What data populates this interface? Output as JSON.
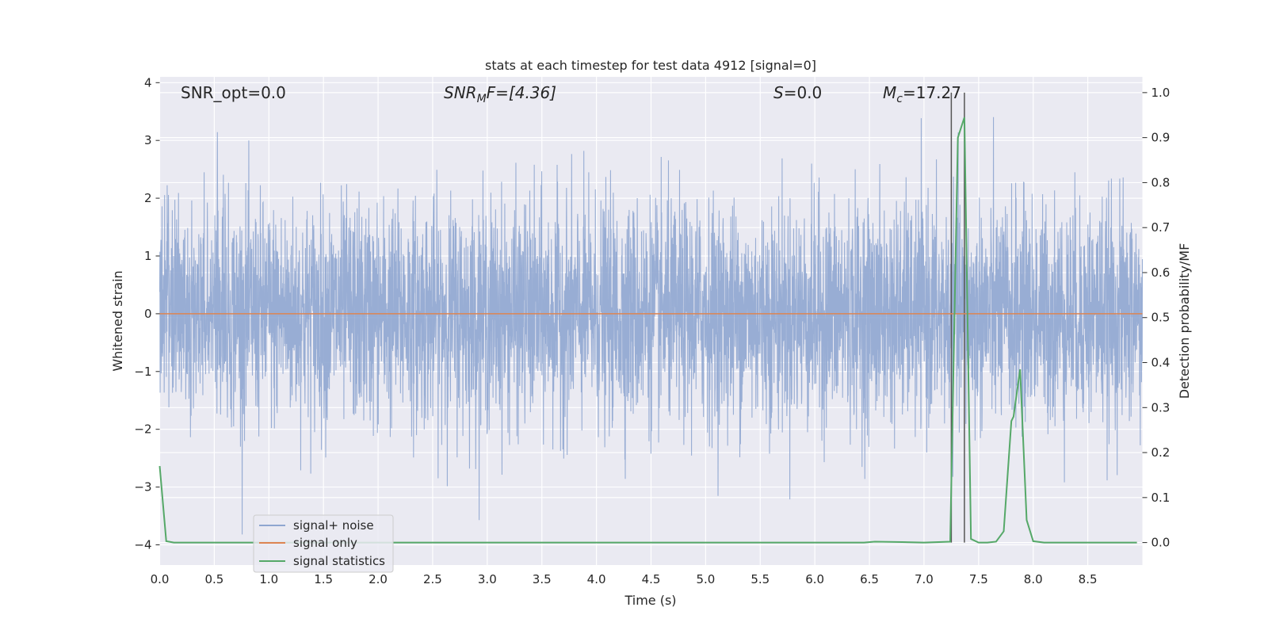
{
  "chart_data": {
    "type": "line",
    "title": "stats at each timestep for test data 4912 [signal=0]",
    "xlabel": "Time (s)",
    "ylabel": "Whitened strain",
    "ylabel_right": "Detection probability/MF",
    "xlim": [
      0.0,
      9.0
    ],
    "ylim": [
      -4.35,
      4.1
    ],
    "ylim_right": [
      -0.05,
      1.035
    ],
    "x_ticks": [
      "0.0",
      "0.5",
      "1.0",
      "1.5",
      "2.0",
      "2.5",
      "3.0",
      "3.5",
      "4.0",
      "4.5",
      "5.0",
      "5.5",
      "6.0",
      "6.5",
      "7.0",
      "7.5",
      "8.0",
      "8.5"
    ],
    "y_ticks": [
      "4",
      "3",
      "2",
      "1",
      "0",
      "−1",
      "−2",
      "−3",
      "−4"
    ],
    "y_ticks_right": [
      "1.0",
      "0.9",
      "0.8",
      "0.7",
      "0.6",
      "0.5",
      "0.4",
      "0.3",
      "0.2",
      "0.1",
      "0.0"
    ],
    "grid": true,
    "legend_position": "lower-left",
    "annotations": {
      "snr_opt": "SNR_opt=0.0",
      "snr_mf_base": "SNR",
      "snr_mf_sub": "M",
      "snr_mf_rest": "F=[4.36]",
      "s_main": "S",
      "s_rest": "=0.0",
      "mc_main": "M",
      "mc_sub": "c",
      "mc_rest": "=17.27"
    },
    "vertical_lines_x": [
      7.25,
      7.37
    ],
    "series": [
      {
        "name": "signal+ noise",
        "color": "#8fa6d0",
        "kind": "noise",
        "x_range": [
          0.0,
          9.0
        ],
        "envelope": [
          -4.0,
          3.55
        ],
        "note_values": "dense whitened strain noise, approx. ±1.5 core"
      },
      {
        "name": "signal only",
        "color": "#dd8452",
        "kind": "line",
        "x": [
          0.0,
          9.0
        ],
        "y": [
          0.0,
          0.0
        ]
      },
      {
        "name": "signal statistics",
        "color": "#55a868",
        "kind": "line",
        "axis": "right",
        "x": [
          0.0,
          0.06,
          0.13,
          0.5,
          1.0,
          2.0,
          3.0,
          4.0,
          5.0,
          6.0,
          6.45,
          6.55,
          6.8,
          7.0,
          7.24,
          7.31,
          7.37,
          7.43,
          7.5,
          7.58,
          7.66,
          7.73,
          7.8,
          7.82,
          7.88,
          7.94,
          8.0,
          8.1,
          8.5,
          8.95
        ],
        "y": [
          0.17,
          0.003,
          0.0,
          0.0,
          0.0,
          0.0,
          0.0,
          0.0,
          0.0,
          0.0,
          0.0,
          0.002,
          0.001,
          0.0,
          0.002,
          0.9,
          0.945,
          0.008,
          0.0,
          0.0,
          0.002,
          0.025,
          0.27,
          0.28,
          0.385,
          0.05,
          0.003,
          0.0,
          0.0,
          0.0
        ]
      }
    ]
  }
}
